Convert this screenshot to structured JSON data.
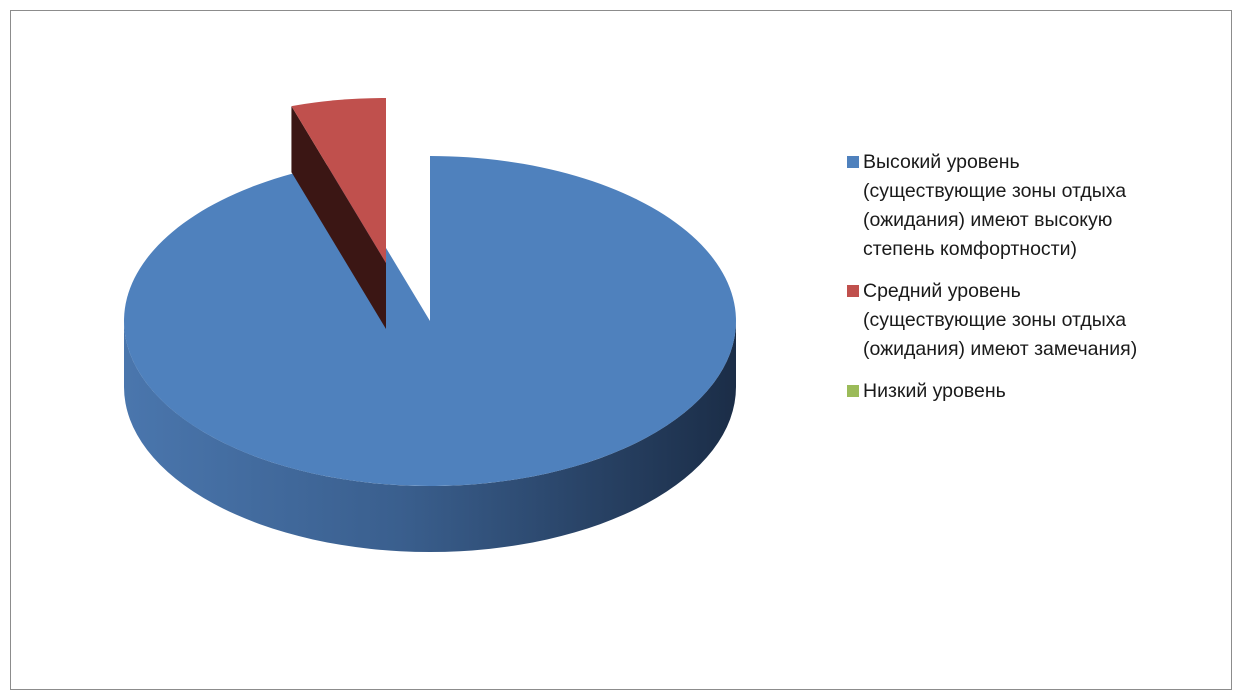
{
  "chart_data": {
    "type": "pie",
    "title": "",
    "categories": [
      "Высокий уровень (существующие зоны отдыха (ожидания) имеют высокую степень комфортности)",
      "Средний уровень (существующие зоны отдыха (ожидания) имеют замечания)",
      "Низкий уровень"
    ],
    "values": [
      95,
      5,
      0
    ],
    "colors": [
      "#4f81bd",
      "#c0504d",
      "#9bbb59"
    ],
    "legend_position": "right",
    "style": "3d-exploded"
  },
  "legend": {
    "items": [
      {
        "label": "Высокий уровень\n(существующие зоны отдыха\n(ожидания) имеют высокую\nстепень комфортности)",
        "color": "#4f81bd"
      },
      {
        "label": "Средний уровень\n(существующие зоны отдыха\n(ожидания) имеют замечания)",
        "color": "#c0504d"
      },
      {
        "label": "Низкий уровень",
        "color": "#9bbb59"
      }
    ]
  }
}
